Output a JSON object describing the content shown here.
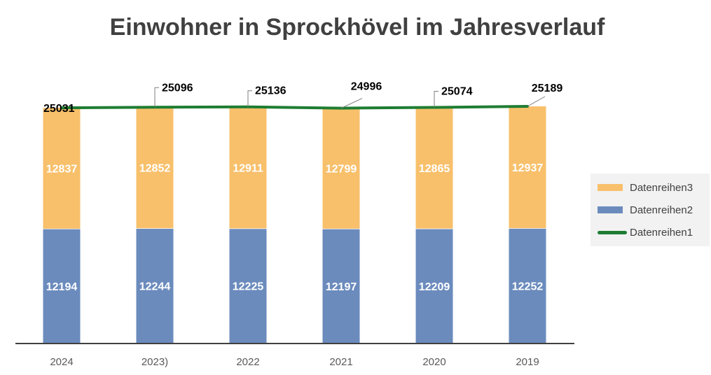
{
  "chart_data": {
    "type": "bar",
    "title": "Einwohner in Sprockhövel im Jahresverlauf",
    "categories": [
      "2024",
      "2023)",
      "2022",
      "2021",
      "2020",
      "2019"
    ],
    "stacked": true,
    "series": [
      {
        "name": "Datenreihen2",
        "type": "bar",
        "color": "#6b8bbd",
        "values": [
          12194,
          12244,
          12225,
          12197,
          12209,
          12252
        ]
      },
      {
        "name": "Datenreihen3",
        "type": "bar",
        "color": "#f8c06b",
        "values": [
          12837,
          12852,
          12911,
          12799,
          12865,
          12937
        ]
      },
      {
        "name": "Datenreihen1",
        "type": "line",
        "color": "#1e7d32",
        "values": [
          25031,
          25096,
          25136,
          24996,
          25074,
          25189
        ]
      }
    ],
    "ylim": [
      0,
      25189
    ],
    "grid": false,
    "legend_position": "right"
  },
  "legend": {
    "items": [
      {
        "label": "Datenreihen3",
        "color": "#f8c06b",
        "kind": "bar"
      },
      {
        "label": "Datenreihen2",
        "color": "#6b8bbd",
        "kind": "bar"
      },
      {
        "label": "Datenreihen1",
        "color": "#1e7d32",
        "kind": "line"
      }
    ]
  }
}
